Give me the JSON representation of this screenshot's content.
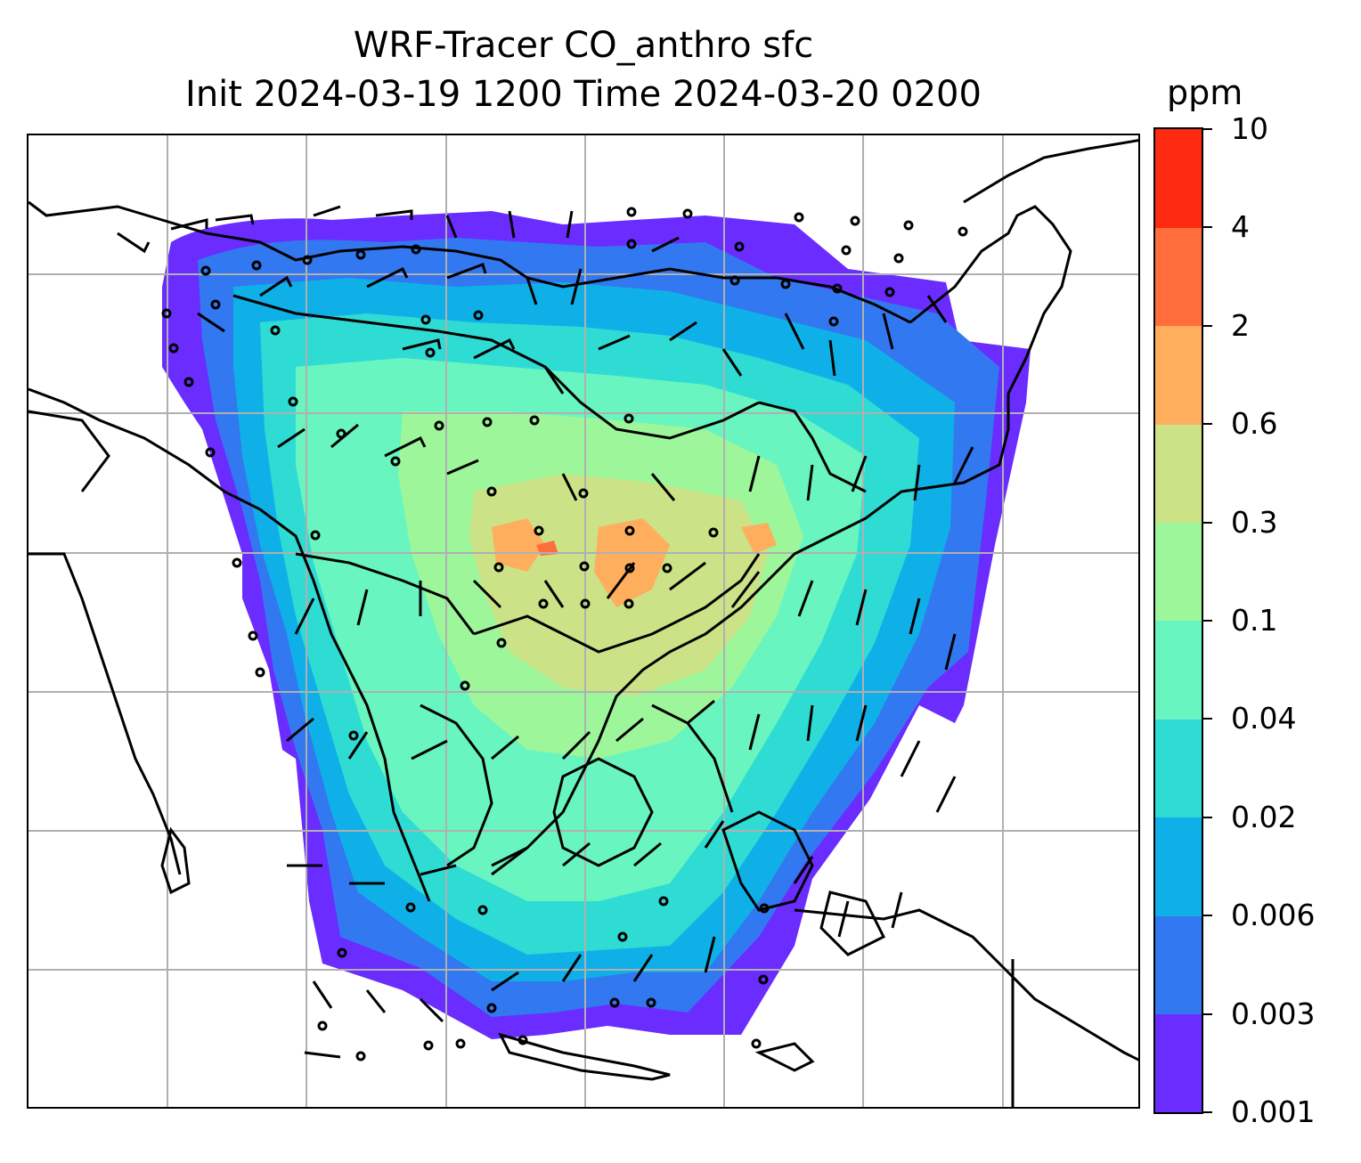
{
  "title": {
    "line1": "WRF-Tracer CO_anthro sfc",
    "line2": "Init 2024-03-19 1200 Time 2024-03-20 0200"
  },
  "colorbar": {
    "unit": "ppm",
    "levels": [
      "0.001",
      "0.003",
      "0.006",
      "0.02",
      "0.04",
      "0.1",
      "0.3",
      "0.6",
      "2",
      "4",
      "10"
    ],
    "colors": [
      "#6a2cff",
      "#3278f0",
      "#0fb0e8",
      "#2fdcd4",
      "#68f5c0",
      "#9df79a",
      "#cce287",
      "#ffae5e",
      "#ff6e3a",
      "#ff2a12"
    ]
  },
  "map": {
    "gridlines": true,
    "features": [
      "coastlines",
      "country-borders",
      "wind-barbs",
      "calm-wind-circles"
    ]
  }
}
